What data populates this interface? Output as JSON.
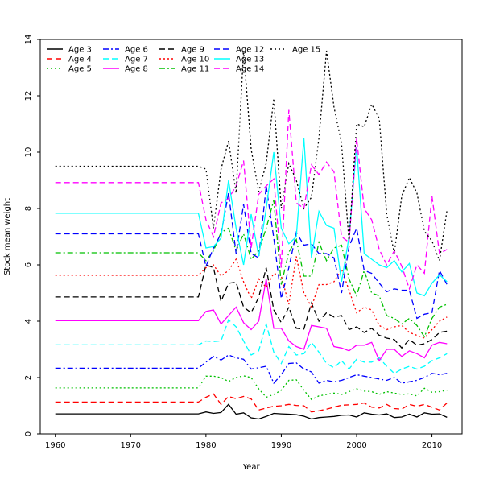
{
  "chart_data": {
    "type": "line",
    "title": "",
    "xlabel": "Year",
    "ylabel": "Stock mean weight",
    "xlim": [
      1958,
      2014
    ],
    "ylim": [
      0,
      14
    ],
    "x_ticks": [
      1960,
      1970,
      1980,
      1990,
      2000,
      2010
    ],
    "y_ticks": [
      0,
      2,
      4,
      6,
      8,
      10,
      12,
      14
    ],
    "grid": false,
    "legend_position": "top-left",
    "years": [
      1960,
      1961,
      1962,
      1963,
      1964,
      1965,
      1966,
      1967,
      1968,
      1969,
      1970,
      1971,
      1972,
      1973,
      1974,
      1975,
      1976,
      1977,
      1978,
      1979,
      1980,
      1981,
      1982,
      1983,
      1984,
      1985,
      1986,
      1987,
      1988,
      1989,
      1990,
      1991,
      1992,
      1993,
      1994,
      1995,
      1996,
      1997,
      1998,
      1999,
      2000,
      2001,
      2002,
      2003,
      2004,
      2005,
      2006,
      2007,
      2008,
      2009,
      2010,
      2011,
      2012
    ],
    "series": [
      {
        "name": "Age 3",
        "color": "#000000",
        "dash": "solid",
        "constant_value": 0.71,
        "values_1980_2012": [
          0.78,
          0.73,
          0.76,
          1.05,
          0.7,
          0.75,
          0.57,
          0.53,
          0.62,
          0.73,
          0.71,
          0.7,
          0.68,
          0.63,
          0.53,
          0.58,
          0.6,
          0.62,
          0.66,
          0.67,
          0.6,
          0.75,
          0.7,
          0.67,
          0.71,
          0.58,
          0.6,
          0.7,
          0.6,
          0.75,
          0.7,
          0.71,
          0.59
        ]
      },
      {
        "name": "Age 4",
        "color": "#ff0000",
        "dash": "dashed",
        "constant_value": 1.13,
        "values_1980_2012": [
          1.3,
          1.42,
          1.05,
          1.33,
          1.25,
          1.33,
          1.24,
          0.85,
          0.92,
          0.98,
          1.0,
          1.05,
          1.01,
          1.0,
          0.78,
          0.82,
          0.88,
          0.95,
          1.02,
          1.03,
          1.05,
          1.1,
          0.95,
          0.92,
          1.05,
          0.9,
          0.88,
          1.05,
          0.98,
          1.05,
          0.95,
          0.85,
          1.1
        ]
      },
      {
        "name": "Age 5",
        "color": "#00c000",
        "dash": "dotted",
        "constant_value": 1.63,
        "values_1980_2012": [
          2.05,
          2.05,
          2.0,
          1.86,
          2.0,
          2.06,
          2.0,
          1.6,
          1.3,
          1.4,
          1.55,
          1.9,
          1.92,
          1.55,
          1.22,
          1.35,
          1.4,
          1.45,
          1.4,
          1.5,
          1.6,
          1.52,
          1.5,
          1.4,
          1.5,
          1.45,
          1.4,
          1.42,
          1.35,
          1.62,
          1.48,
          1.5,
          1.55
        ]
      },
      {
        "name": "Age 6",
        "color": "#0000ff",
        "dash": "dashdot",
        "constant_value": 2.33,
        "values_1980_2012": [
          2.55,
          2.75,
          2.62,
          2.8,
          2.7,
          2.65,
          2.3,
          2.35,
          2.4,
          1.8,
          2.1,
          2.5,
          2.52,
          2.3,
          2.2,
          1.8,
          1.9,
          1.85,
          1.9,
          2.0,
          2.1,
          2.05,
          2.0,
          1.95,
          1.9,
          2.0,
          1.8,
          1.85,
          1.9,
          2.0,
          2.15,
          2.1,
          2.15
        ]
      },
      {
        "name": "Age 7",
        "color": "#00ffff",
        "dash": "dashed",
        "constant_value": 3.16,
        "values_1980_2012": [
          3.3,
          3.28,
          3.3,
          4.05,
          3.8,
          3.3,
          2.8,
          2.95,
          3.9,
          2.9,
          2.5,
          3.1,
          2.8,
          2.85,
          3.25,
          2.9,
          2.5,
          2.35,
          2.6,
          2.3,
          2.65,
          2.55,
          2.55,
          2.7,
          2.4,
          2.15,
          2.3,
          2.4,
          2.3,
          2.4,
          2.6,
          2.7,
          2.85
        ]
      },
      {
        "name": "Age 8",
        "color": "#ff00ff",
        "dash": "solid",
        "constant_value": 4.02,
        "values_1980_2012": [
          4.35,
          4.4,
          3.9,
          4.2,
          4.5,
          3.95,
          3.7,
          4.0,
          5.5,
          3.75,
          3.75,
          3.3,
          3.1,
          3.0,
          3.85,
          3.8,
          3.75,
          3.1,
          3.05,
          2.95,
          3.15,
          3.15,
          3.25,
          2.6,
          3.0,
          3.0,
          2.75,
          2.95,
          2.85,
          2.7,
          3.15,
          3.25,
          3.2
        ]
      },
      {
        "name": "Age 9",
        "color": "#000000",
        "dash": "dashed",
        "constant_value": 4.86,
        "values_1980_2012": [
          6.0,
          5.9,
          4.7,
          5.35,
          5.38,
          4.5,
          4.3,
          4.85,
          5.9,
          4.4,
          3.95,
          4.5,
          3.75,
          3.72,
          4.65,
          4.0,
          4.3,
          4.15,
          4.2,
          3.7,
          3.8,
          3.6,
          3.75,
          3.5,
          3.4,
          3.35,
          3.05,
          3.35,
          3.15,
          3.2,
          3.35,
          3.6,
          3.65
        ]
      },
      {
        "name": "Age 10",
        "color": "#ff0000",
        "dash": "dotted",
        "constant_value": 5.63,
        "values_1980_2012": [
          5.9,
          6.0,
          5.6,
          5.8,
          6.2,
          5.4,
          4.8,
          5.5,
          5.2,
          5.7,
          5.6,
          4.6,
          6.3,
          5.0,
          4.5,
          5.3,
          5.3,
          5.4,
          5.85,
          5.1,
          4.3,
          4.5,
          4.4,
          3.85,
          3.7,
          3.8,
          3.85,
          3.6,
          3.5,
          3.4,
          3.7,
          4.0,
          4.15
        ]
      },
      {
        "name": "Age 11",
        "color": "#00c000",
        "dash": "dashdot",
        "constant_value": 6.43,
        "values_1980_2012": [
          6.15,
          6.5,
          7.15,
          7.3,
          6.5,
          7.1,
          6.2,
          6.5,
          7.3,
          8.3,
          5.3,
          6.45,
          6.9,
          5.6,
          5.6,
          6.8,
          6.15,
          6.6,
          6.7,
          5.5,
          4.9,
          5.8,
          5.0,
          4.9,
          4.2,
          4.1,
          3.9,
          4.1,
          3.85,
          3.45,
          4.1,
          4.5,
          4.6
        ]
      },
      {
        "name": "Age 12",
        "color": "#0000ff",
        "dash": "dashed",
        "constant_value": 7.1,
        "values_1980_2012": [
          5.95,
          6.6,
          7.1,
          8.55,
          6.4,
          8.15,
          6.4,
          6.25,
          8.8,
          6.95,
          4.8,
          5.9,
          7.15,
          6.7,
          6.75,
          6.4,
          6.4,
          6.25,
          5.0,
          6.65,
          7.3,
          5.8,
          5.7,
          5.35,
          5.05,
          5.15,
          5.1,
          5.1,
          4.1,
          4.25,
          4.3,
          5.8,
          5.3
        ]
      },
      {
        "name": "Age 13",
        "color": "#00ffff",
        "dash": "solid",
        "constant_value": 7.83,
        "values_1980_2012": [
          6.6,
          6.65,
          6.95,
          9.0,
          7.3,
          6.0,
          7.8,
          6.3,
          8.0,
          10.0,
          7.3,
          6.75,
          7.0,
          10.5,
          6.25,
          7.9,
          7.4,
          7.3,
          5.4,
          7.0,
          10.2,
          6.4,
          6.2,
          6.0,
          5.9,
          6.15,
          5.75,
          6.05,
          5.0,
          4.9,
          5.35,
          5.65,
          5.4
        ]
      },
      {
        "name": "Age 14",
        "color": "#ff00ff",
        "dash": "dashed",
        "constant_value": 8.92,
        "values_1980_2012": [
          7.6,
          7.0,
          8.2,
          8.35,
          8.8,
          9.7,
          6.6,
          8.5,
          8.8,
          9.05,
          5.9,
          11.5,
          8.2,
          8.0,
          9.55,
          9.2,
          9.65,
          9.3,
          7.0,
          6.8,
          10.5,
          8.0,
          7.6,
          6.55,
          6.0,
          6.5,
          5.95,
          5.15,
          6.0,
          5.7,
          8.45,
          6.4,
          6.55
        ]
      },
      {
        "name": "Age 15",
        "color": "#000000",
        "dash": "dotted",
        "constant_value": 9.5,
        "values_1980_2012": [
          9.4,
          7.3,
          9.4,
          10.4,
          8.55,
          13.6,
          10.1,
          8.6,
          9.6,
          11.9,
          8.0,
          9.6,
          9.0,
          8.0,
          8.4,
          10.5,
          13.6,
          11.6,
          10.3,
          6.8,
          11.0,
          10.9,
          11.7,
          11.2,
          7.8,
          6.4,
          8.45,
          9.1,
          8.55,
          7.2,
          6.85,
          6.15,
          7.95
        ]
      }
    ]
  }
}
